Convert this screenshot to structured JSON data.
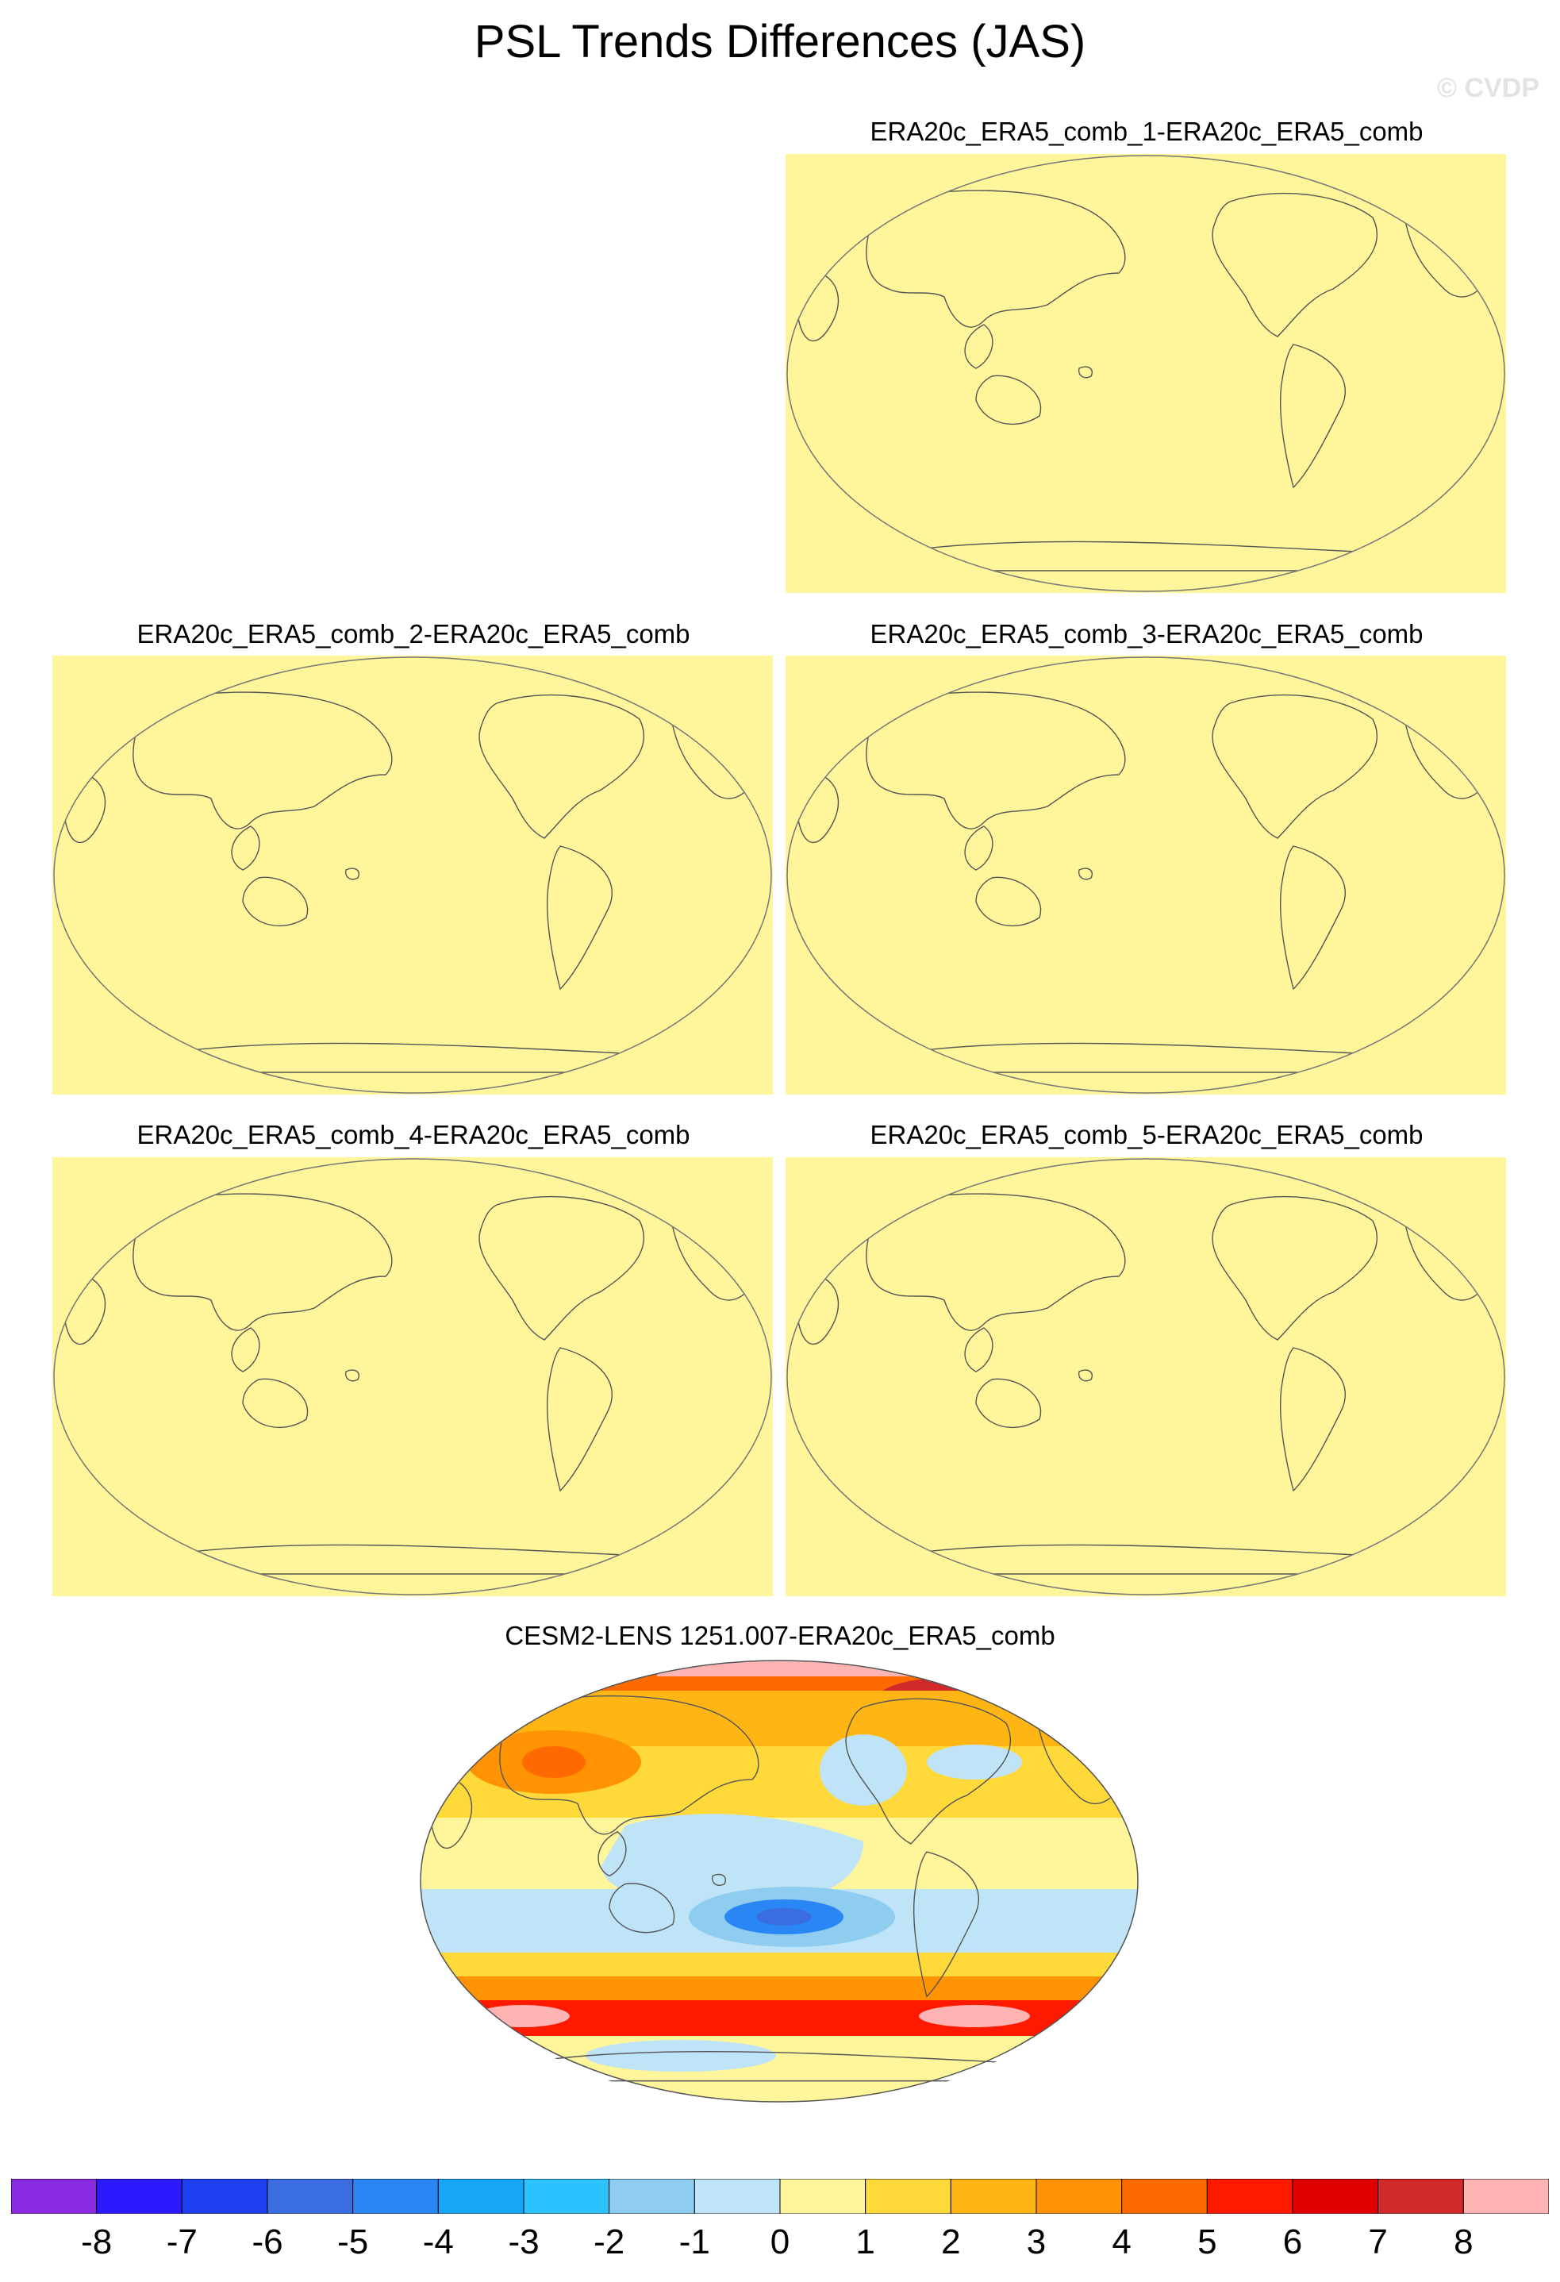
{
  "title": "PSL Trends Differences (JAS)",
  "watermark": "© CVDP",
  "panels": [
    {
      "title": "ERA20c_ERA5_comb_1-ERA20c_ERA5_comb",
      "fill": "uniform-zero"
    },
    {
      "title": "ERA20c_ERA5_comb_2-ERA20c_ERA5_comb",
      "fill": "uniform-zero"
    },
    {
      "title": "ERA20c_ERA5_comb_3-ERA20c_ERA5_comb",
      "fill": "uniform-zero"
    },
    {
      "title": "ERA20c_ERA5_comb_4-ERA20c_ERA5_comb",
      "fill": "uniform-zero"
    },
    {
      "title": "ERA20c_ERA5_comb_5-ERA20c_ERA5_comb",
      "fill": "uniform-zero"
    },
    {
      "title": "CESM2-LENS 1251.007-ERA20c_ERA5_comb",
      "fill": "anomaly-field"
    }
  ],
  "colorbar": {
    "labels": [
      "-8",
      "-7",
      "-6",
      "-5",
      "-4",
      "-3",
      "-2",
      "-1",
      "0",
      "1",
      "2",
      "3",
      "4",
      "5",
      "6",
      "7",
      "8"
    ],
    "colors": [
      "#8a2be2",
      "#2c1aff",
      "#1e3ff0",
      "#3a6ee0",
      "#2a86f5",
      "#15a6f7",
      "#2cc1ff",
      "#8ecdf0",
      "#bfe3f7",
      "#fff59a",
      "#ffd83a",
      "#ffb514",
      "#ff9304",
      "#ff6a00",
      "#ff1900",
      "#e00000",
      "#d22a2a",
      "#ffb4b4"
    ]
  },
  "colors": {
    "zero_fill": "#fff59a",
    "coastline": "#555555",
    "land_outline": "#777777"
  }
}
